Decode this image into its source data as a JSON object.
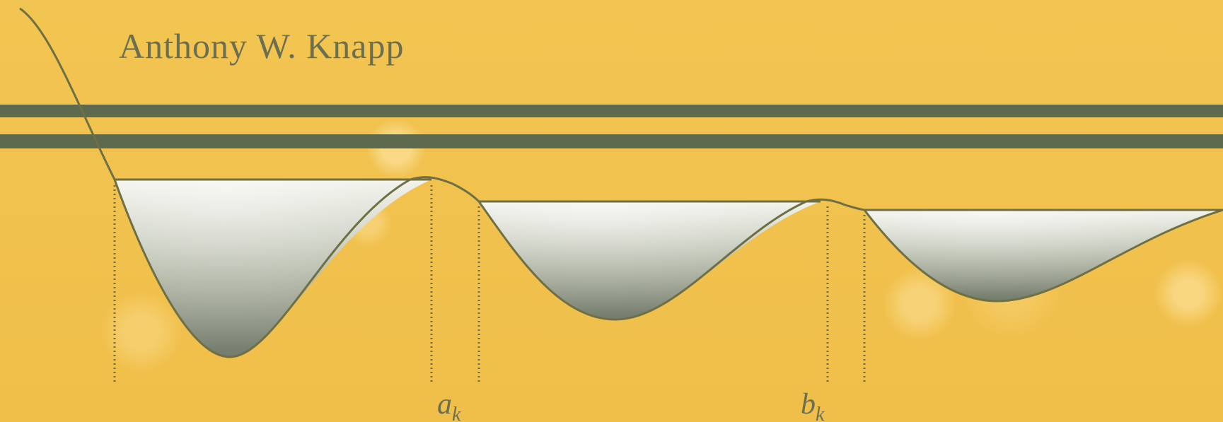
{
  "author": "Anthony W. Knapp",
  "labels": {
    "a": {
      "base": "a",
      "sub": "k"
    },
    "b": {
      "base": "b",
      "sub": "k"
    }
  },
  "colors": {
    "background": "#f1c04e",
    "stripe": "#5d6a4d",
    "curve": "#6e6f43",
    "fill_light": "#eef0e6",
    "fill_dark": "#7b8375",
    "text": "#6b6f4f"
  }
}
